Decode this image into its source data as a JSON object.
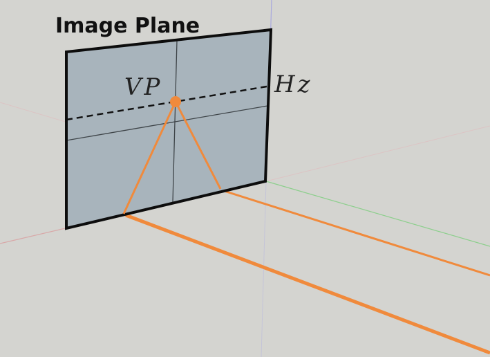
{
  "labels": {
    "title": "Image Plane",
    "vanishing_point": "VP",
    "horizon": "Hz"
  },
  "colors": {
    "background": "#d4d4d0",
    "plane_fill": "#a8b4bc",
    "plane_edge": "#0d0d0d",
    "perspective_lines": "#f08a3c",
    "axis_red": "#d8a8a8",
    "axis_green": "#8ccf8c",
    "axis_blue": "#a8a8de"
  }
}
